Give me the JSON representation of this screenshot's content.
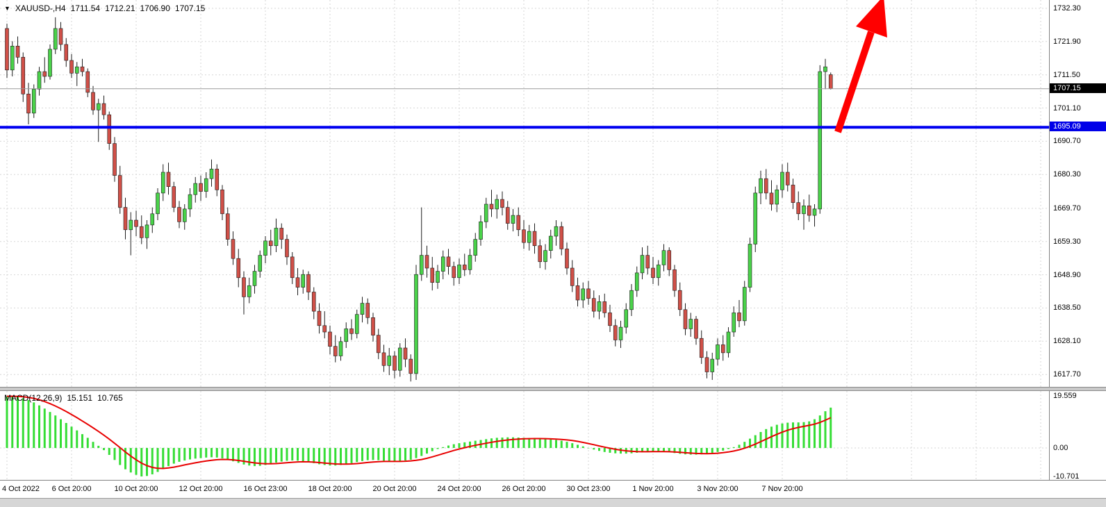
{
  "symbol_info": {
    "dropdown_icon": "▼",
    "symbol": "XAUUSD-,H4",
    "open": "1711.54",
    "high": "1712.21",
    "low": "1706.90",
    "close": "1707.15"
  },
  "price_axis": {
    "current_price": "1707.15",
    "line_price": "1695.09"
  },
  "macd": {
    "name": "MACD(12,26,9)",
    "main_value": "15.151",
    "signal_value": "10.765",
    "scale_max": "19.559",
    "scale_zero": "0.00",
    "scale_min": "-10.701"
  },
  "colors": {
    "bull_candle": "#4ad24a",
    "bear_candle": "#d05048",
    "candle_outline": "#1c1c1c",
    "macd_histogram": "#35dd35",
    "macd_signal_line": "#e80000",
    "support_line": "#0000f0",
    "arrow": "#ff0000",
    "grid": "#d6d6d6",
    "current_price_line": "#9a9a9a",
    "current_price_badge_bg": "#000000",
    "line_badge_bg": "#0000e8"
  },
  "chart_data": {
    "type": "candlestick",
    "title": "XAUUSD- H4",
    "current_price": 1707.15,
    "support_line_price": 1695.09,
    "price_ticks": [
      1732.3,
      1721.9,
      1711.5,
      1701.1,
      1690.7,
      1680.3,
      1669.7,
      1659.3,
      1648.9,
      1638.5,
      1628.1,
      1617.7
    ],
    "time_labels": [
      {
        "bar": 0,
        "text": "4 Oct 2022"
      },
      {
        "bar": 12,
        "text": "6 Oct 20:00"
      },
      {
        "bar": 24,
        "text": "10 Oct 20:00"
      },
      {
        "bar": 36,
        "text": "12 Oct 20:00"
      },
      {
        "bar": 48,
        "text": "16 Oct 23:00"
      },
      {
        "bar": 60,
        "text": "18 Oct 20:00"
      },
      {
        "bar": 72,
        "text": "20 Oct 20:00"
      },
      {
        "bar": 84,
        "text": "24 Oct 20:00"
      },
      {
        "bar": 96,
        "text": "26 Oct 20:00"
      },
      {
        "bar": 108,
        "text": "30 Oct 23:00"
      },
      {
        "bar": 120,
        "text": "1 Nov 20:00"
      },
      {
        "bar": 132,
        "text": "3 Nov 20:00"
      },
      {
        "bar": 144,
        "text": "7 Nov 20:00"
      }
    ],
    "candles": [
      [
        1726.0,
        1727.5,
        1710.5,
        1713.0
      ],
      [
        1713.0,
        1722.0,
        1711.0,
        1720.5
      ],
      [
        1720.5,
        1723.5,
        1715.0,
        1717.0
      ],
      [
        1717.0,
        1718.5,
        1703.0,
        1705.5
      ],
      [
        1705.5,
        1709.0,
        1696.0,
        1699.5
      ],
      [
        1699.5,
        1708.5,
        1698.0,
        1707.0
      ],
      [
        1707.0,
        1714.0,
        1705.0,
        1712.5
      ],
      [
        1712.5,
        1717.0,
        1709.0,
        1711.0
      ],
      [
        1711.0,
        1721.0,
        1710.0,
        1719.5
      ],
      [
        1719.5,
        1729.5,
        1718.0,
        1726.0
      ],
      [
        1726.0,
        1728.0,
        1719.0,
        1721.0
      ],
      [
        1721.0,
        1723.0,
        1714.0,
        1716.0
      ],
      [
        1716.0,
        1718.0,
        1710.5,
        1712.0
      ],
      [
        1712.0,
        1715.5,
        1708.0,
        1714.0
      ],
      [
        1714.0,
        1716.5,
        1711.0,
        1712.5
      ],
      [
        1712.5,
        1713.5,
        1704.5,
        1706.0
      ],
      [
        1706.0,
        1708.0,
        1699.0,
        1700.5
      ],
      [
        1700.5,
        1704.0,
        1690.5,
        1702.5
      ],
      [
        1702.5,
        1705.0,
        1697.5,
        1699.0
      ],
      [
        1699.0,
        1700.0,
        1688.0,
        1690.0
      ],
      [
        1690.0,
        1692.0,
        1678.0,
        1680.0
      ],
      [
        1680.0,
        1683.0,
        1668.0,
        1670.0
      ],
      [
        1670.0,
        1673.0,
        1660.0,
        1663.0
      ],
      [
        1663.0,
        1668.5,
        1655.0,
        1666.0
      ],
      [
        1666.0,
        1669.0,
        1661.0,
        1664.0
      ],
      [
        1664.0,
        1667.5,
        1658.5,
        1660.5
      ],
      [
        1660.5,
        1666.0,
        1657.0,
        1664.5
      ],
      [
        1664.5,
        1670.0,
        1662.0,
        1668.0
      ],
      [
        1668.0,
        1676.0,
        1666.0,
        1674.5
      ],
      [
        1674.5,
        1683.5,
        1672.0,
        1681.0
      ],
      [
        1681.0,
        1684.0,
        1674.0,
        1676.5
      ],
      [
        1676.5,
        1678.0,
        1668.5,
        1670.0
      ],
      [
        1670.0,
        1672.0,
        1663.5,
        1665.5
      ],
      [
        1665.5,
        1671.0,
        1663.0,
        1669.5
      ],
      [
        1669.5,
        1676.0,
        1667.0,
        1674.0
      ],
      [
        1674.0,
        1679.5,
        1671.5,
        1677.5
      ],
      [
        1677.5,
        1680.0,
        1672.0,
        1675.0
      ],
      [
        1675.0,
        1681.0,
        1673.0,
        1679.0
      ],
      [
        1679.0,
        1685.0,
        1676.5,
        1682.0
      ],
      [
        1682.0,
        1683.5,
        1673.5,
        1675.5
      ],
      [
        1675.5,
        1677.0,
        1666.0,
        1668.0
      ],
      [
        1668.0,
        1670.0,
        1658.0,
        1660.0
      ],
      [
        1660.0,
        1662.5,
        1652.0,
        1654.0
      ],
      [
        1654.0,
        1657.0,
        1645.0,
        1648.0
      ],
      [
        1648.0,
        1650.0,
        1636.5,
        1642.0
      ],
      [
        1642.0,
        1648.0,
        1640.0,
        1645.5
      ],
      [
        1645.5,
        1652.0,
        1643.0,
        1650.0
      ],
      [
        1650.0,
        1656.5,
        1648.0,
        1655.0
      ],
      [
        1655.0,
        1661.0,
        1652.5,
        1659.5
      ],
      [
        1659.5,
        1663.0,
        1655.0,
        1658.0
      ],
      [
        1658.0,
        1666.5,
        1656.0,
        1663.5
      ],
      [
        1663.5,
        1665.0,
        1657.0,
        1660.0
      ],
      [
        1660.0,
        1661.5,
        1652.0,
        1654.5
      ],
      [
        1654.5,
        1656.0,
        1646.0,
        1648.0
      ],
      [
        1648.0,
        1651.0,
        1642.5,
        1645.0
      ],
      [
        1645.0,
        1650.5,
        1643.0,
        1649.0
      ],
      [
        1649.0,
        1650.0,
        1641.0,
        1643.5
      ],
      [
        1643.5,
        1645.0,
        1635.0,
        1637.5
      ],
      [
        1637.5,
        1640.0,
        1630.5,
        1633.0
      ],
      [
        1633.0,
        1637.5,
        1629.0,
        1631.0
      ],
      [
        1631.0,
        1633.0,
        1624.0,
        1626.5
      ],
      [
        1626.5,
        1630.0,
        1621.5,
        1623.5
      ],
      [
        1623.5,
        1629.5,
        1622.0,
        1628.0
      ],
      [
        1628.0,
        1634.0,
        1626.0,
        1632.0
      ],
      [
        1632.0,
        1635.0,
        1628.5,
        1630.5
      ],
      [
        1630.5,
        1638.0,
        1629.0,
        1636.5
      ],
      [
        1636.5,
        1642.0,
        1634.0,
        1640.0
      ],
      [
        1640.0,
        1641.5,
        1633.5,
        1635.5
      ],
      [
        1635.5,
        1637.0,
        1628.0,
        1630.0
      ],
      [
        1630.0,
        1632.0,
        1622.5,
        1624.5
      ],
      [
        1624.5,
        1627.0,
        1618.5,
        1620.5
      ],
      [
        1620.5,
        1626.0,
        1617.5,
        1623.5
      ],
      [
        1623.5,
        1625.0,
        1616.5,
        1619.0
      ],
      [
        1619.0,
        1627.5,
        1617.0,
        1626.0
      ],
      [
        1626.0,
        1629.0,
        1620.0,
        1622.5
      ],
      [
        1622.5,
        1624.0,
        1615.5,
        1618.0
      ],
      [
        1618.0,
        1652.0,
        1616.0,
        1649.0
      ],
      [
        1649.0,
        1670.0,
        1647.0,
        1655.0
      ],
      [
        1655.0,
        1658.0,
        1648.0,
        1651.0
      ],
      [
        1651.0,
        1654.5,
        1644.0,
        1646.5
      ],
      [
        1646.5,
        1652.0,
        1644.5,
        1650.0
      ],
      [
        1650.0,
        1656.5,
        1647.5,
        1654.5
      ],
      [
        1654.5,
        1657.0,
        1649.0,
        1651.5
      ],
      [
        1651.5,
        1653.0,
        1645.5,
        1648.0
      ],
      [
        1648.0,
        1654.0,
        1646.0,
        1652.0
      ],
      [
        1652.0,
        1655.5,
        1648.5,
        1650.5
      ],
      [
        1650.5,
        1657.0,
        1649.0,
        1655.0
      ],
      [
        1655.0,
        1662.0,
        1653.0,
        1660.0
      ],
      [
        1660.0,
        1667.5,
        1658.0,
        1665.5
      ],
      [
        1665.5,
        1673.0,
        1663.5,
        1671.0
      ],
      [
        1671.0,
        1675.5,
        1667.0,
        1669.5
      ],
      [
        1669.5,
        1674.0,
        1666.5,
        1672.5
      ],
      [
        1672.5,
        1675.0,
        1667.5,
        1670.0
      ],
      [
        1670.0,
        1672.0,
        1663.0,
        1665.0
      ],
      [
        1665.0,
        1669.5,
        1662.5,
        1667.5
      ],
      [
        1667.5,
        1670.0,
        1661.0,
        1663.0
      ],
      [
        1663.0,
        1666.0,
        1657.0,
        1659.0
      ],
      [
        1659.0,
        1664.5,
        1656.5,
        1662.5
      ],
      [
        1662.5,
        1665.0,
        1655.5,
        1658.0
      ],
      [
        1658.0,
        1660.0,
        1651.0,
        1653.0
      ],
      [
        1653.0,
        1658.5,
        1650.5,
        1656.5
      ],
      [
        1656.5,
        1663.0,
        1654.0,
        1661.0
      ],
      [
        1661.0,
        1666.0,
        1658.0,
        1664.0
      ],
      [
        1664.0,
        1665.5,
        1655.0,
        1657.0
      ],
      [
        1657.0,
        1659.0,
        1649.0,
        1651.0
      ],
      [
        1651.0,
        1653.5,
        1643.5,
        1645.5
      ],
      [
        1645.5,
        1648.0,
        1639.0,
        1641.0
      ],
      [
        1641.0,
        1646.5,
        1638.5,
        1644.5
      ],
      [
        1644.5,
        1647.0,
        1639.5,
        1641.5
      ],
      [
        1641.5,
        1644.0,
        1635.5,
        1637.5
      ],
      [
        1637.5,
        1642.5,
        1635.0,
        1640.5
      ],
      [
        1640.5,
        1643.0,
        1635.5,
        1637.0
      ],
      [
        1637.0,
        1639.5,
        1631.0,
        1633.0
      ],
      [
        1633.0,
        1635.0,
        1626.5,
        1628.5
      ],
      [
        1628.5,
        1634.5,
        1626.0,
        1632.5
      ],
      [
        1632.5,
        1640.0,
        1630.5,
        1638.0
      ],
      [
        1638.0,
        1646.0,
        1636.0,
        1644.0
      ],
      [
        1644.0,
        1651.5,
        1642.0,
        1649.5
      ],
      [
        1649.5,
        1657.5,
        1647.5,
        1655.0
      ],
      [
        1655.0,
        1658.0,
        1649.0,
        1651.0
      ],
      [
        1651.0,
        1654.5,
        1646.0,
        1648.0
      ],
      [
        1648.0,
        1653.5,
        1645.5,
        1652.0
      ],
      [
        1652.0,
        1658.5,
        1650.0,
        1656.5
      ],
      [
        1656.5,
        1657.5,
        1648.5,
        1650.5
      ],
      [
        1650.5,
        1652.0,
        1642.0,
        1644.0
      ],
      [
        1644.0,
        1646.5,
        1636.0,
        1638.0
      ],
      [
        1638.0,
        1640.0,
        1630.0,
        1632.0
      ],
      [
        1632.0,
        1637.0,
        1629.5,
        1635.0
      ],
      [
        1635.0,
        1636.0,
        1627.0,
        1629.0
      ],
      [
        1629.0,
        1631.5,
        1621.0,
        1623.0
      ],
      [
        1623.0,
        1625.0,
        1616.5,
        1618.5
      ],
      [
        1618.5,
        1624.5,
        1616.0,
        1622.5
      ],
      [
        1622.5,
        1629.0,
        1620.5,
        1627.0
      ],
      [
        1627.0,
        1630.0,
        1622.0,
        1624.5
      ],
      [
        1624.5,
        1632.5,
        1623.0,
        1631.0
      ],
      [
        1631.0,
        1639.0,
        1629.5,
        1637.0
      ],
      [
        1637.0,
        1641.0,
        1632.5,
        1634.5
      ],
      [
        1634.5,
        1647.0,
        1633.0,
        1645.0
      ],
      [
        1645.0,
        1660.5,
        1643.5,
        1658.5
      ],
      [
        1658.5,
        1676.5,
        1656.0,
        1674.5
      ],
      [
        1674.5,
        1681.5,
        1671.0,
        1679.0
      ],
      [
        1679.0,
        1682.0,
        1672.5,
        1674.5
      ],
      [
        1674.5,
        1678.5,
        1669.0,
        1671.0
      ],
      [
        1671.0,
        1677.0,
        1668.5,
        1675.5
      ],
      [
        1675.5,
        1683.5,
        1673.0,
        1681.0
      ],
      [
        1681.0,
        1684.0,
        1675.0,
        1677.0
      ],
      [
        1677.0,
        1679.0,
        1669.5,
        1671.5
      ],
      [
        1671.5,
        1675.0,
        1666.0,
        1668.0
      ],
      [
        1668.0,
        1672.5,
        1663.0,
        1670.5
      ],
      [
        1670.5,
        1674.0,
        1665.5,
        1667.5
      ],
      [
        1667.5,
        1671.0,
        1664.0,
        1669.5
      ],
      [
        1669.5,
        1714.5,
        1668.0,
        1712.5
      ],
      [
        1712.5,
        1716.5,
        1707.0,
        1714.0
      ],
      [
        1711.54,
        1712.21,
        1706.9,
        1707.15
      ]
    ],
    "macd": {
      "params": "12,26,9",
      "main": 15.151,
      "signal": 10.765,
      "scale_max": 19.559,
      "scale_min": -10.701,
      "histogram": [
        19.4,
        19.5,
        19.2,
        18.7,
        18,
        17.1,
        16,
        14.8,
        13.5,
        12.2,
        10.8,
        9.4,
        8,
        6.6,
        5.2,
        3.8,
        2.3,
        0.8,
        -0.8,
        -2.6,
        -4.5,
        -6.4,
        -8,
        -9.2,
        -10.1,
        -10.7,
        -10.5,
        -9.9,
        -9,
        -7.9,
        -6.8,
        -5.9,
        -5.2,
        -4.7,
        -4.3,
        -4,
        -3.8,
        -3.6,
        -3.5,
        -3.6,
        -3.9,
        -4.4,
        -5,
        -5.6,
        -6.2,
        -6.6,
        -6.8,
        -6.7,
        -6.4,
        -6,
        -5.5,
        -5.1,
        -4.8,
        -4.7,
        -4.8,
        -5,
        -5.3,
        -5.7,
        -6.1,
        -6.4,
        -6.6,
        -6.6,
        -6.4,
        -6.1,
        -5.7,
        -5.3,
        -4.9,
        -4.6,
        -4.5,
        -4.6,
        -4.8,
        -5,
        -5.1,
        -5,
        -4.7,
        -4.4,
        -3.8,
        -3,
        -2.1,
        -1.2,
        -0.4,
        0.3,
        0.9,
        1.4,
        1.8,
        2.1,
        2.4,
        2.7,
        3,
        3.3,
        3.6,
        3.8,
        3.9,
        4,
        4,
        3.9,
        3.8,
        3.7,
        3.6,
        3.5,
        3.4,
        3.2,
        3,
        2.7,
        2.3,
        1.8,
        1.2,
        0.6,
        0,
        -0.6,
        -1.1,
        -1.5,
        -1.8,
        -2,
        -2.1,
        -2.1,
        -2,
        -1.8,
        -1.6,
        -1.4,
        -1.3,
        -1.3,
        -1.4,
        -1.6,
        -1.9,
        -2.2,
        -2.4,
        -2.5,
        -2.5,
        -2.4,
        -2.2,
        -1.9,
        -1.5,
        -1,
        -0.4,
        0.3,
        1.2,
        2.3,
        3.5,
        4.8,
        6,
        7.1,
        8,
        8.7,
        9.2,
        9.5,
        9.6,
        9.6,
        9.7,
        10,
        10.8,
        12.2,
        13.8,
        15.151
      ]
    },
    "annotations": [
      {
        "type": "horizontal-line",
        "price": 1695.09,
        "color": "#0000f0"
      },
      {
        "type": "arrow-up",
        "color": "#ff0000"
      }
    ]
  }
}
